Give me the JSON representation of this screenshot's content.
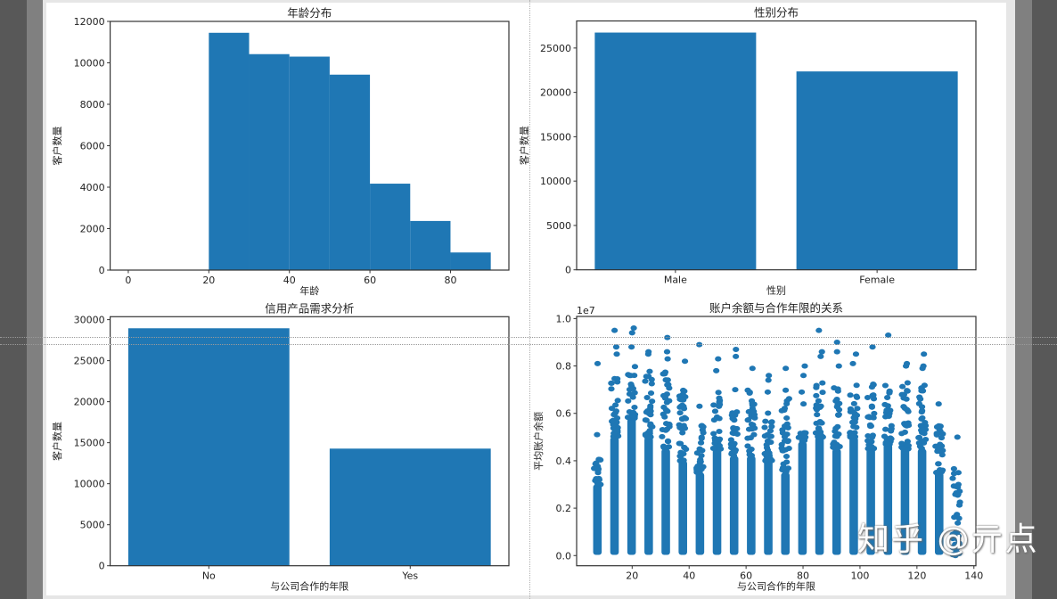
{
  "colors": {
    "bar": "#1f77b4",
    "axis": "#333333",
    "text": "#222222"
  },
  "watermark": "知乎 @亓点",
  "chart_data": [
    {
      "type": "bar",
      "subtype": "histogram",
      "title": "年龄分布",
      "xlabel": "年龄",
      "ylabel": "客户数量",
      "bin_edges": [
        0,
        10,
        20,
        30,
        40,
        50,
        60,
        70,
        80,
        90
      ],
      "values": [
        0,
        0,
        11450,
        10420,
        10300,
        9430,
        4170,
        2370,
        850
      ],
      "xlim": [
        -4.5,
        94.5
      ],
      "ylim": [
        0,
        12000
      ],
      "xticks": [
        "0",
        "20",
        "40",
        "60",
        "80"
      ],
      "yticks": [
        "0",
        "2000",
        "4000",
        "6000",
        "8000",
        "10000",
        "12000"
      ]
    },
    {
      "type": "bar",
      "title": "性别分布",
      "xlabel": "性别",
      "ylabel": "客户数量",
      "categories": [
        "Male",
        "Female"
      ],
      "values": [
        26740,
        22360
      ],
      "ylim": [
        0,
        28050
      ],
      "yticks": [
        "0",
        "5000",
        "10000",
        "15000",
        "20000",
        "25000"
      ]
    },
    {
      "type": "bar",
      "title": "信用产品需求分析",
      "xlabel": "与公司合作的年限",
      "ylabel": "客户数量",
      "categories": [
        "No",
        "Yes"
      ],
      "values": [
        28950,
        14280
      ],
      "ylim": [
        0,
        30360
      ],
      "yticks": [
        "0",
        "5000",
        "10000",
        "15000",
        "20000",
        "25000",
        "30000"
      ]
    },
    {
      "type": "scatter",
      "title": "账户余额与合作年限的关系",
      "xlabel": "与公司合作的年限",
      "ylabel": "平均账户余额",
      "y_offset_label": "1e7",
      "xlim": [
        0.5,
        140.7
      ],
      "ylim": [
        -0.043,
        1.009
      ],
      "xticks": [
        "20",
        "40",
        "60",
        "80",
        "100",
        "120",
        "140"
      ],
      "yticks": [
        "0.0",
        "0.2",
        "0.4",
        "0.6",
        "0.8",
        "1.0"
      ],
      "columns": [
        {
          "x": 8,
          "dense_max": 0.3,
          "sparse_max": 0.42,
          "outliers": [
            0.51,
            0.81,
            0.35
          ]
        },
        {
          "x": 14,
          "dense_max": 0.5,
          "sparse_max": 0.78,
          "outliers": [
            0.85,
            0.88,
            0.95
          ]
        },
        {
          "x": 20,
          "dense_max": 0.58,
          "sparse_max": 0.8,
          "outliers": [
            0.88,
            0.94,
            0.96
          ]
        },
        {
          "x": 26,
          "dense_max": 0.5,
          "sparse_max": 0.78,
          "outliers": [
            0.85,
            0.86
          ]
        },
        {
          "x": 32,
          "dense_max": 0.45,
          "sparse_max": 0.78,
          "outliers": [
            0.83,
            0.86,
            0.92
          ]
        },
        {
          "x": 38,
          "dense_max": 0.4,
          "sparse_max": 0.72,
          "outliers": [
            0.82
          ]
        },
        {
          "x": 44,
          "dense_max": 0.35,
          "sparse_max": 0.56,
          "outliers": [
            0.63,
            0.89
          ]
        },
        {
          "x": 50,
          "dense_max": 0.45,
          "sparse_max": 0.7,
          "outliers": [
            0.78,
            0.83
          ]
        },
        {
          "x": 56,
          "dense_max": 0.42,
          "sparse_max": 0.66,
          "outliers": [
            0.7,
            0.84,
            0.87
          ]
        },
        {
          "x": 62,
          "dense_max": 0.42,
          "sparse_max": 0.7,
          "outliers": [
            0.79
          ]
        },
        {
          "x": 68,
          "dense_max": 0.4,
          "sparse_max": 0.62,
          "outliers": [
            0.69,
            0.74,
            0.76
          ]
        },
        {
          "x": 74,
          "dense_max": 0.35,
          "sparse_max": 0.7,
          "outliers": [
            0.79
          ]
        },
        {
          "x": 80,
          "dense_max": 0.48,
          "sparse_max": 0.52,
          "outliers": [
            0.64,
            0.69,
            0.76,
            0.8
          ]
        },
        {
          "x": 86,
          "dense_max": 0.5,
          "sparse_max": 0.74,
          "outliers": [
            0.84,
            0.86,
            0.95
          ]
        },
        {
          "x": 92,
          "dense_max": 0.45,
          "sparse_max": 0.72,
          "outliers": [
            0.8,
            0.86,
            0.9
          ]
        },
        {
          "x": 98,
          "dense_max": 0.5,
          "sparse_max": 0.73,
          "outliers": [
            0.81,
            0.85
          ]
        },
        {
          "x": 104,
          "dense_max": 0.45,
          "sparse_max": 0.74,
          "outliers": [
            0.88
          ]
        },
        {
          "x": 110,
          "dense_max": 0.47,
          "sparse_max": 0.74,
          "outliers": [
            0.93
          ]
        },
        {
          "x": 116,
          "dense_max": 0.45,
          "sparse_max": 0.74,
          "outliers": [
            0.8,
            0.81
          ]
        },
        {
          "x": 122,
          "dense_max": 0.45,
          "sparse_max": 0.75,
          "outliers": [
            0.8,
            0.79,
            0.85
          ]
        },
        {
          "x": 128,
          "dense_max": 0.35,
          "sparse_max": 0.58,
          "outliers": [
            0.64
          ]
        },
        {
          "x": 134,
          "dense_max": 0.0,
          "sparse_max": 0.37,
          "outliers": [
            0.5,
            0.3
          ]
        }
      ]
    }
  ]
}
